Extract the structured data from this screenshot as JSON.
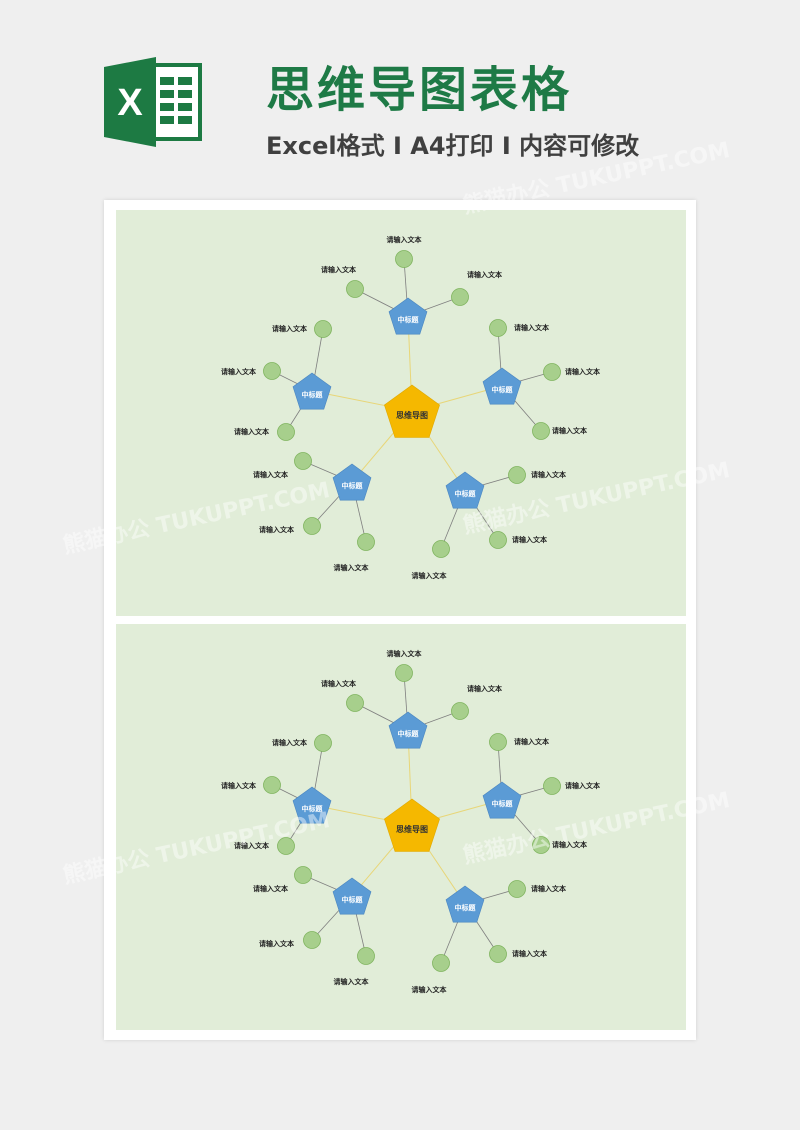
{
  "header": {
    "title": "思维导图表格",
    "subtitle": "Excel格式 I A4打印 I 内容可修改",
    "logo_letter": "X"
  },
  "colors": {
    "title_green": "#1e7a46",
    "excel_green": "#1d7a43",
    "panel_bg": "#e1edd8",
    "center_fill": "#f5b800",
    "sub_fill": "#5b9bd5",
    "leaf_fill": "#a7cf8c",
    "leaf_stroke": "#7fb45e",
    "yellow_line": "#e8d678",
    "gray_line": "#7f7f7f"
  },
  "watermark": "熊猫办公 TUKUPPT.COM",
  "mindmaps": [
    {
      "center": "思维导图",
      "branches": [
        {
          "label": "中标题",
          "leaves": [
            "请输入文本",
            "请输入文本",
            "请输入文本"
          ]
        },
        {
          "label": "中标题",
          "leaves": [
            "请输入文本",
            "请输入文本",
            "请输入文本"
          ]
        },
        {
          "label": "中标题",
          "leaves": [
            "请输入文本",
            "请输入文本",
            "请输入文本"
          ]
        },
        {
          "label": "中标题",
          "leaves": [
            "请输入文本",
            "请输入文本",
            "请输入文本"
          ]
        },
        {
          "label": "中标题",
          "leaves": [
            "请输入文本",
            "请输入文本",
            "请输入文本"
          ]
        }
      ]
    },
    {
      "center": "思维导图",
      "branches": [
        {
          "label": "中标题",
          "leaves": [
            "请输入文本",
            "请输入文本",
            "请输入文本"
          ]
        },
        {
          "label": "中标题",
          "leaves": [
            "请输入文本",
            "请输入文本",
            "请输入文本"
          ]
        },
        {
          "label": "中标题",
          "leaves": [
            "请输入文本",
            "请输入文本",
            "请输入文本"
          ]
        },
        {
          "label": "中标题",
          "leaves": [
            "请输入文本",
            "请输入文本",
            "请输入文本"
          ]
        },
        {
          "label": "中标题",
          "leaves": [
            "请输入文本",
            "请输入文本",
            "请输入文本"
          ]
        }
      ]
    }
  ]
}
